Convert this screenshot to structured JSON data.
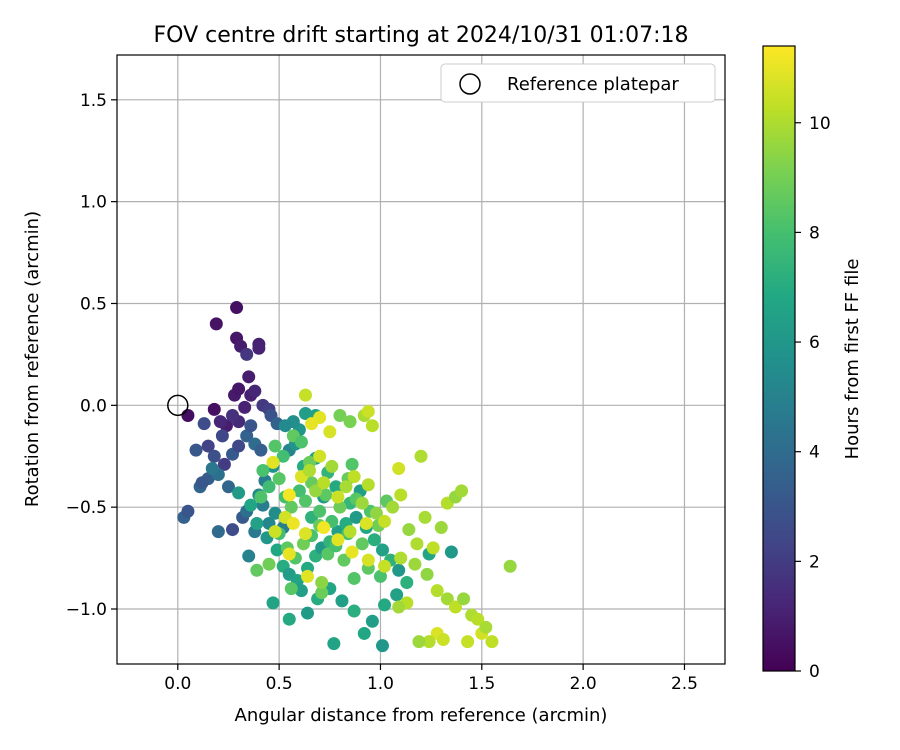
{
  "chart_data": {
    "type": "scatter",
    "title": "FOV centre drift starting at 2024/10/31 01:07:18",
    "xlabel": "Angular distance from reference (arcmin)",
    "ylabel": "Rotation from reference (arcmin)",
    "xlim": [
      -0.3,
      2.7
    ],
    "ylim": [
      -1.27,
      1.72
    ],
    "xticks": [
      0.0,
      0.5,
      1.0,
      1.5,
      2.0,
      2.5
    ],
    "xtick_labels": [
      "0.0",
      "0.5",
      "1.0",
      "1.5",
      "2.0",
      "2.5"
    ],
    "yticks": [
      -1.0,
      -0.5,
      0.0,
      0.5,
      1.0,
      1.5
    ],
    "ytick_labels": [
      "−1.0",
      "−0.5",
      "0.0",
      "0.5",
      "1.0",
      "1.5"
    ],
    "grid": true,
    "legend": {
      "placement": "top-right",
      "entries": [
        {
          "label": "Reference platepar",
          "marker": "open-circle"
        }
      ]
    },
    "reference_point": {
      "x": 0.0,
      "y": 0.0
    },
    "colorbar": {
      "label": "Hours from first FF file",
      "colormap": "viridis",
      "range": [
        0,
        11.4
      ],
      "ticks": [
        0,
        2,
        4,
        6,
        8,
        10
      ],
      "tick_labels": [
        "0",
        "2",
        "4",
        "6",
        "8",
        "10"
      ]
    },
    "point_columns": [
      "x",
      "y",
      "hours"
    ],
    "points": [
      [
        0.05,
        -0.05,
        0.4
      ],
      [
        0.18,
        -0.02,
        0.5
      ],
      [
        0.19,
        0.4,
        0.6
      ],
      [
        0.29,
        0.48,
        0.5
      ],
      [
        0.29,
        0.33,
        0.7
      ],
      [
        0.31,
        0.29,
        0.9
      ],
      [
        0.34,
        0.25,
        1.8
      ],
      [
        0.4,
        0.3,
        1.0
      ],
      [
        0.4,
        0.28,
        1.1
      ],
      [
        0.28,
        0.05,
        0.8
      ],
      [
        0.3,
        0.08,
        0.7
      ],
      [
        0.35,
        0.14,
        0.9
      ],
      [
        0.36,
        0.05,
        1.0
      ],
      [
        0.38,
        0.07,
        1.2
      ],
      [
        0.24,
        -0.1,
        0.9
      ],
      [
        0.21,
        -0.08,
        1.3
      ],
      [
        0.33,
        -0.01,
        1.1
      ],
      [
        0.3,
        -0.08,
        1.4
      ],
      [
        0.27,
        -0.05,
        1.6
      ],
      [
        0.42,
        0.0,
        1.9
      ],
      [
        0.45,
        -0.02,
        2.1
      ],
      [
        0.13,
        -0.09,
        2.6
      ],
      [
        0.15,
        -0.2,
        2.3
      ],
      [
        0.09,
        -0.22,
        3.1
      ],
      [
        0.22,
        -0.15,
        2.4
      ],
      [
        0.18,
        -0.25,
        2.8
      ],
      [
        0.23,
        -0.29,
        2.0
      ],
      [
        0.27,
        -0.24,
        3.2
      ],
      [
        0.3,
        -0.2,
        2.5
      ],
      [
        0.34,
        -0.15,
        3.5
      ],
      [
        0.36,
        -0.1,
        3.0
      ],
      [
        0.38,
        -0.19,
        4.0
      ],
      [
        0.41,
        -0.22,
        3.4
      ],
      [
        0.46,
        -0.05,
        2.9
      ],
      [
        0.49,
        -0.09,
        3.6
      ],
      [
        0.11,
        -0.4,
        3.7
      ],
      [
        0.15,
        -0.36,
        3.3
      ],
      [
        0.2,
        -0.34,
        4.2
      ],
      [
        0.25,
        -0.4,
        3.8
      ],
      [
        0.12,
        -0.38,
        3.1
      ],
      [
        0.17,
        -0.31,
        4.5
      ],
      [
        0.03,
        -0.55,
        3.5
      ],
      [
        0.05,
        -0.52,
        3.0
      ],
      [
        0.2,
        -0.62,
        3.9
      ],
      [
        0.27,
        -0.61,
        2.6
      ],
      [
        0.32,
        -0.55,
        3.2
      ],
      [
        0.34,
        -0.52,
        4.1
      ],
      [
        0.35,
        -0.74,
        5.0
      ],
      [
        0.38,
        -0.62,
        4.6
      ],
      [
        0.42,
        -0.49,
        4.8
      ],
      [
        0.45,
        -0.58,
        5.2
      ],
      [
        0.48,
        -0.53,
        5.5
      ],
      [
        0.52,
        -0.6,
        4.9
      ],
      [
        0.4,
        -0.44,
        5.3
      ],
      [
        0.43,
        -0.37,
        4.7
      ],
      [
        0.47,
        -0.3,
        5.7
      ],
      [
        0.55,
        -0.22,
        5.1
      ],
      [
        0.58,
        -0.19,
        5.9
      ],
      [
        0.6,
        -0.12,
        6.0
      ],
      [
        0.57,
        -0.08,
        5.6
      ],
      [
        0.63,
        -0.04,
        6.3
      ],
      [
        0.68,
        -0.05,
        6.5
      ],
      [
        0.53,
        -0.1,
        5.4
      ],
      [
        0.3,
        -0.43,
        6.2
      ],
      [
        0.36,
        -0.49,
        6.7
      ],
      [
        0.39,
        -0.58,
        6.5
      ],
      [
        0.44,
        -0.65,
        6.0
      ],
      [
        0.49,
        -0.71,
        6.8
      ],
      [
        0.52,
        -0.79,
        7.0
      ],
      [
        0.55,
        -0.83,
        6.3
      ],
      [
        0.59,
        -0.86,
        6.6
      ],
      [
        0.64,
        -0.8,
        6.9
      ],
      [
        0.68,
        -0.74,
        7.2
      ],
      [
        0.71,
        -0.7,
        6.1
      ],
      [
        0.75,
        -0.67,
        7.4
      ],
      [
        0.79,
        -0.62,
        6.4
      ],
      [
        0.83,
        -0.58,
        7.0
      ],
      [
        0.88,
        -0.55,
        6.2
      ],
      [
        0.93,
        -0.6,
        6.8
      ],
      [
        0.97,
        -0.66,
        7.1
      ],
      [
        1.01,
        -0.71,
        6.5
      ],
      [
        1.05,
        -0.76,
        7.3
      ],
      [
        1.09,
        -0.81,
        6.0
      ],
      [
        0.47,
        -0.97,
        6.6
      ],
      [
        0.55,
        -1.05,
        6.9
      ],
      [
        0.64,
        -1.02,
        6.2
      ],
      [
        0.69,
        -0.95,
        7.0
      ],
      [
        0.75,
        -0.9,
        6.7
      ],
      [
        0.81,
        -0.96,
        6.4
      ],
      [
        0.87,
        -1.01,
        7.1
      ],
      [
        0.92,
        -1.12,
        6.8
      ],
      [
        0.96,
        -1.06,
        6.3
      ],
      [
        1.02,
        -0.98,
        6.9
      ],
      [
        1.08,
        -0.93,
        6.5
      ],
      [
        1.13,
        -0.87,
        7.2
      ],
      [
        0.77,
        -1.17,
        6.6
      ],
      [
        1.01,
        -1.18,
        6.0
      ],
      [
        1.24,
        -0.73,
        6.7
      ],
      [
        1.35,
        -0.72,
        6.1
      ],
      [
        0.61,
        -0.91,
        6.4
      ],
      [
        0.66,
        -0.55,
        7.3
      ],
      [
        0.72,
        -0.45,
        6.2
      ],
      [
        0.78,
        -0.4,
        6.9
      ],
      [
        0.85,
        -0.48,
        7.5
      ],
      [
        0.9,
        -0.42,
        6.3
      ],
      [
        0.62,
        -0.3,
        7.0
      ],
      [
        0.68,
        -0.26,
        6.6
      ],
      [
        0.74,
        -0.33,
        7.4
      ],
      [
        0.42,
        -0.32,
        8.1
      ],
      [
        0.45,
        -0.4,
        7.8
      ],
      [
        0.5,
        -0.36,
        8.4
      ],
      [
        0.53,
        -0.45,
        8.0
      ],
      [
        0.56,
        -0.5,
        8.6
      ],
      [
        0.6,
        -0.42,
        7.9
      ],
      [
        0.63,
        -0.47,
        8.3
      ],
      [
        0.66,
        -0.38,
        8.7
      ],
      [
        0.7,
        -0.52,
        8.2
      ],
      [
        0.73,
        -0.44,
        8.5
      ],
      [
        0.76,
        -0.57,
        8.0
      ],
      [
        0.8,
        -0.5,
        8.8
      ],
      [
        0.84,
        -0.63,
        8.1
      ],
      [
        0.88,
        -0.46,
        8.4
      ],
      [
        0.91,
        -0.68,
        8.6
      ],
      [
        0.95,
        -0.52,
        8.2
      ],
      [
        0.99,
        -0.59,
        8.9
      ],
      [
        1.03,
        -0.47,
        8.5
      ],
      [
        0.48,
        -0.2,
        8.3
      ],
      [
        0.52,
        -0.25,
        7.9
      ],
      [
        0.57,
        -0.15,
        8.6
      ],
      [
        0.61,
        -0.18,
        8.2
      ],
      [
        0.65,
        -0.28,
        8.8
      ],
      [
        0.5,
        -0.63,
        8.0
      ],
      [
        0.54,
        -0.7,
        8.5
      ],
      [
        0.58,
        -0.75,
        8.3
      ],
      [
        0.62,
        -0.68,
        8.9
      ],
      [
        0.66,
        -0.64,
        8.1
      ],
      [
        0.7,
        -0.59,
        8.7
      ],
      [
        0.74,
        -0.73,
        8.4
      ],
      [
        0.78,
        -0.69,
        8.0
      ],
      [
        0.82,
        -0.76,
        8.6
      ],
      [
        0.41,
        -0.45,
        8.2
      ],
      [
        0.56,
        -0.9,
        8.4
      ],
      [
        0.71,
        -0.92,
        8.8
      ],
      [
        0.87,
        -0.85,
        8.3
      ],
      [
        0.94,
        -0.8,
        8.5
      ],
      [
        1.0,
        -0.84,
        8.1
      ],
      [
        0.84,
        -0.36,
        8.7
      ],
      [
        0.86,
        -0.29,
        8.3
      ],
      [
        0.39,
        -0.81,
        8.6
      ],
      [
        0.45,
        -0.78,
        8.9
      ],
      [
        0.8,
        -0.05,
        9.0
      ],
      [
        0.85,
        -0.08,
        9.1
      ],
      [
        0.63,
        0.05,
        10.4
      ],
      [
        0.61,
        -0.35,
        10.8
      ],
      [
        0.65,
        -0.32,
        10.0
      ],
      [
        0.68,
        -0.42,
        9.6
      ],
      [
        0.72,
        -0.38,
        10.2
      ],
      [
        0.76,
        -0.3,
        9.8
      ],
      [
        0.79,
        -0.45,
        10.5
      ],
      [
        0.83,
        -0.4,
        9.9
      ],
      [
        0.87,
        -0.35,
        10.3
      ],
      [
        0.91,
        -0.48,
        9.7
      ],
      [
        0.94,
        -0.39,
        10.1
      ],
      [
        0.98,
        -0.53,
        9.5
      ],
      [
        1.02,
        -0.57,
        10.4
      ],
      [
        1.06,
        -0.5,
        9.8
      ],
      [
        1.1,
        -0.44,
        10.2
      ],
      [
        1.14,
        -0.61,
        9.6
      ],
      [
        1.18,
        -0.68,
        10.0
      ],
      [
        1.22,
        -0.55,
        9.9
      ],
      [
        1.26,
        -0.7,
        10.3
      ],
      [
        1.3,
        -0.6,
        9.7
      ],
      [
        1.33,
        -0.48,
        10.1
      ],
      [
        1.37,
        -0.45,
        9.6
      ],
      [
        1.4,
        -0.42,
        9.8
      ],
      [
        1.2,
        -0.25,
        10.0
      ],
      [
        1.09,
        -0.31,
        10.6
      ],
      [
        0.96,
        -0.1,
        10.2
      ],
      [
        0.92,
        -0.05,
        9.9
      ],
      [
        0.94,
        -0.03,
        10.5
      ],
      [
        0.75,
        -0.13,
        10.7
      ],
      [
        0.7,
        -0.06,
        10.9
      ],
      [
        0.66,
        -0.09,
        11.0
      ],
      [
        0.53,
        -0.55,
        10.6
      ],
      [
        0.57,
        -0.58,
        11.1
      ],
      [
        0.63,
        -0.63,
        10.8
      ],
      [
        0.72,
        -0.6,
        11.2
      ],
      [
        0.79,
        -0.66,
        10.9
      ],
      [
        0.86,
        -0.72,
        11.0
      ],
      [
        0.94,
        -0.76,
        10.7
      ],
      [
        1.02,
        -0.79,
        10.4
      ],
      [
        1.1,
        -0.75,
        10.0
      ],
      [
        1.17,
        -0.78,
        9.7
      ],
      [
        1.23,
        -0.83,
        9.5
      ],
      [
        1.28,
        -0.91,
        10.1
      ],
      [
        1.33,
        -0.95,
        9.8
      ],
      [
        1.37,
        -0.99,
        10.3
      ],
      [
        1.41,
        -0.95,
        9.6
      ],
      [
        1.45,
        -1.03,
        10.0
      ],
      [
        1.48,
        -1.05,
        10.2
      ],
      [
        1.5,
        -1.12,
        10.6
      ],
      [
        1.52,
        -1.09,
        9.9
      ],
      [
        1.55,
        -1.16,
        10.3
      ],
      [
        1.28,
        -1.12,
        10.8
      ],
      [
        1.31,
        -1.15,
        10.5
      ],
      [
        1.24,
        -1.16,
        10.1
      ],
      [
        1.19,
        -1.16,
        9.7
      ],
      [
        1.43,
        -1.16,
        10.4
      ],
      [
        1.13,
        -0.97,
        10.2
      ],
      [
        1.09,
        -0.99,
        9.8
      ],
      [
        1.64,
        -0.79,
        9.6
      ],
      [
        0.71,
        -0.87,
        9.4
      ],
      [
        0.64,
        -0.84,
        10.9
      ],
      [
        0.7,
        -0.25,
        10.6
      ],
      [
        0.85,
        -0.62,
        10.1
      ],
      [
        0.93,
        -0.58,
        10.8
      ],
      [
        0.55,
        -0.73,
        11.0
      ],
      [
        0.48,
        -0.62,
        10.5
      ],
      [
        0.47,
        -0.28,
        10.9
      ],
      [
        0.55,
        -0.44,
        11.2
      ]
    ]
  }
}
